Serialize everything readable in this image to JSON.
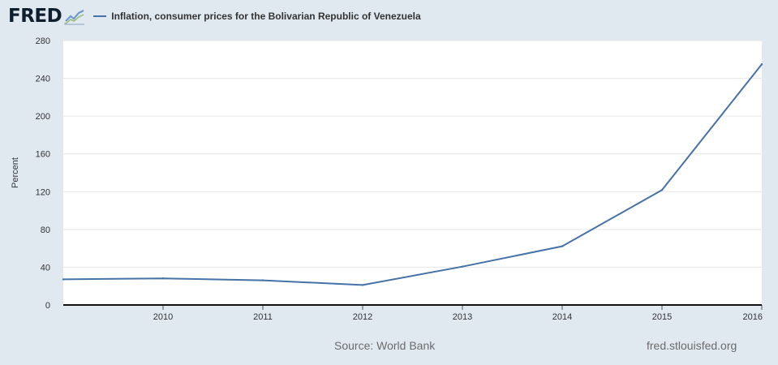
{
  "header": {
    "logo_text": "FRED",
    "logo_icon": "line-graph-icon",
    "legend_label": "Inflation, consumer prices for the Bolivarian Republic of Venezuela"
  },
  "footer": {
    "source": "Source: World Bank",
    "url": "fred.stlouisfed.org"
  },
  "colors": {
    "background": "#e1e9f0",
    "plot_area": "#ffffff",
    "series": "#4572a7",
    "gridline": "#e6e6e6"
  },
  "chart_data": {
    "type": "line",
    "title": "",
    "xlabel": "",
    "ylabel": "Percent",
    "ylim": [
      0,
      280
    ],
    "yticks": [
      0,
      40,
      80,
      120,
      160,
      200,
      240,
      280
    ],
    "xlim": [
      2009,
      2016
    ],
    "xticks": [
      2010,
      2011,
      2012,
      2013,
      2014,
      2015,
      2016
    ],
    "grid": true,
    "legend_position": "top",
    "series": [
      {
        "name": "Inflation, consumer prices for the Bolivarian Republic of Venezuela",
        "x": [
          2009,
          2010,
          2011,
          2012,
          2013,
          2014,
          2015,
          2016
        ],
        "y": [
          27.1,
          28.2,
          26.1,
          21.1,
          40.6,
          62.2,
          121.7,
          254.9
        ]
      }
    ]
  }
}
